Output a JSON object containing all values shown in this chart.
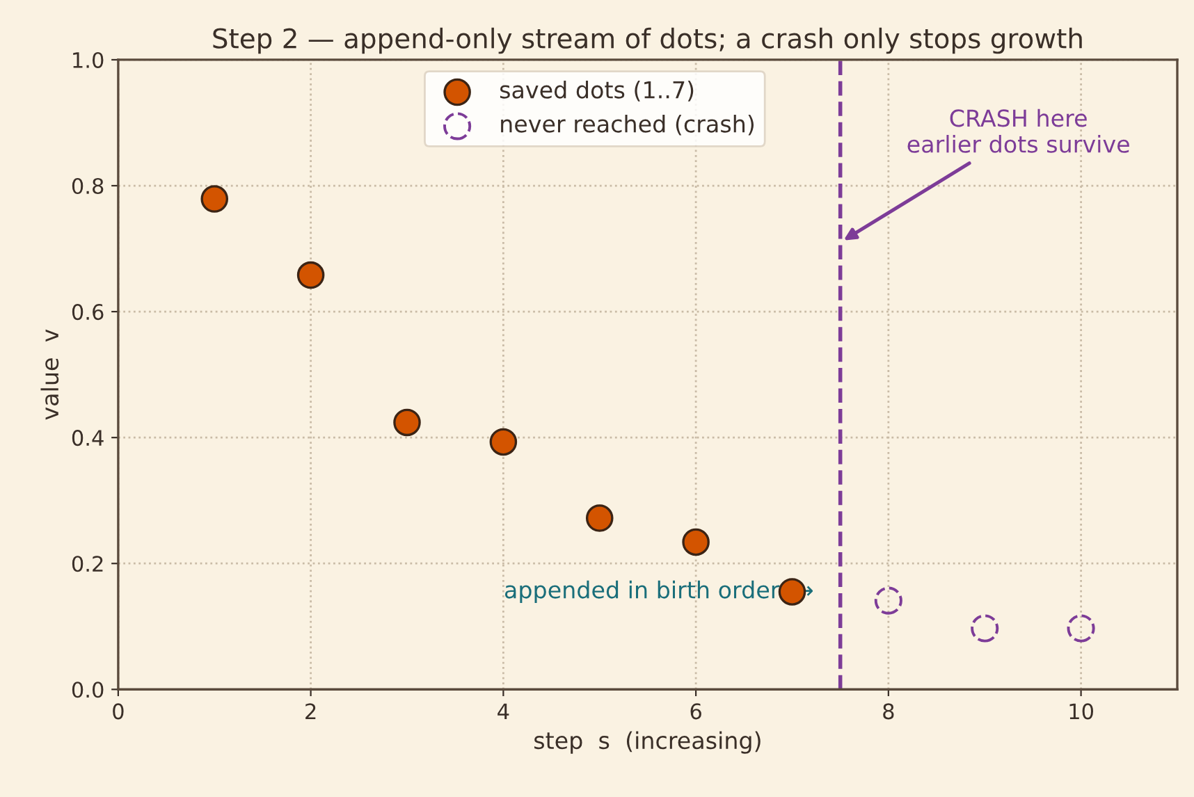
{
  "chart_data": {
    "type": "scatter",
    "title": "Step 2 — append-only stream of dots; a crash only stops growth",
    "xlabel": "step  s  (increasing)",
    "ylabel": "value  v",
    "xlim": [
      0,
      11
    ],
    "ylim": [
      0,
      1.0
    ],
    "xticks": [
      0,
      2,
      4,
      6,
      8,
      10
    ],
    "yticks": [
      {
        "value": 0,
        "label": "0.0"
      },
      0.2,
      0.4,
      0.6,
      0.8,
      {
        "value": 1.0,
        "label": "1.0"
      }
    ],
    "grid": true,
    "legend": "top",
    "marker": "circle",
    "series": [
      {
        "name": "saved dots (1..7)",
        "color": "#d35400",
        "x": [
          1,
          2,
          3,
          4,
          5,
          6,
          7
        ],
        "values": [
          0.779,
          0.658,
          0.424,
          0.393,
          0.272,
          0.234,
          0.155
        ]
      },
      {
        "name": "never reached (crash)",
        "color": "#7d3c98",
        "line_style": "dashed",
        "x": [
          8,
          9,
          10
        ],
        "values": [
          0.141,
          0.097,
          0.097
        ]
      }
    ],
    "ref_lines": [
      {
        "axis": "x",
        "value": 7.5,
        "color": "#7d3c98",
        "line_style": "dashed"
      }
    ],
    "annotations": [
      "CRASH here\nearlier dots survive",
      "appended in birth order  →"
    ]
  }
}
